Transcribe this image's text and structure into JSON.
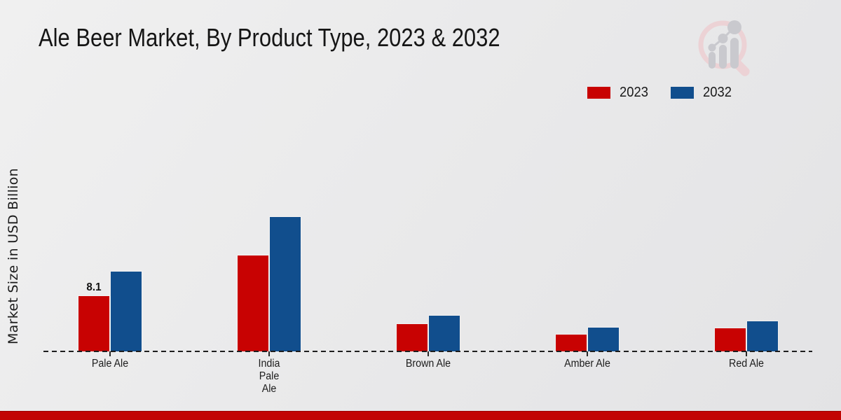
{
  "header": {
    "title": "Ale Beer Market, By Product Type, 2023 & 2032"
  },
  "legend": {
    "items": [
      {
        "label": "2023",
        "color": "#c80202"
      },
      {
        "label": "2032",
        "color": "#114e8d"
      }
    ]
  },
  "watermark_icon": "magnifier-bar-chart-logo",
  "footer": {
    "accent_color": "#c20404"
  },
  "chart_data": {
    "type": "bar",
    "title": "Ale Beer Market, By Product Type, 2023 & 2032",
    "categories": [
      "Pale Ale",
      "India Pale Ale",
      "Brown Ale",
      "Amber Ale",
      "Red Ale"
    ],
    "tick_labels": [
      "Pale Ale",
      "India\nPale\nAle",
      "Brown Ale",
      "Amber Ale",
      "Red Ale"
    ],
    "series": [
      {
        "name": "2023",
        "color": "#c80202",
        "values": [
          8.1,
          14.1,
          4.0,
          2.5,
          3.4
        ]
      },
      {
        "name": "2032",
        "color": "#114e8d",
        "values": [
          11.8,
          19.8,
          5.3,
          3.5,
          4.4
        ]
      }
    ],
    "annotations": [
      {
        "series": "2023",
        "category": "Pale Ale",
        "text": "8.1"
      }
    ],
    "xlabel": "",
    "ylabel": "Market Size in USD Billion",
    "ylim": [
      0,
      22
    ],
    "grid": false,
    "y_axis_ticks_visible": false,
    "baseline_style": "dashed",
    "legend_position": "top-right"
  }
}
